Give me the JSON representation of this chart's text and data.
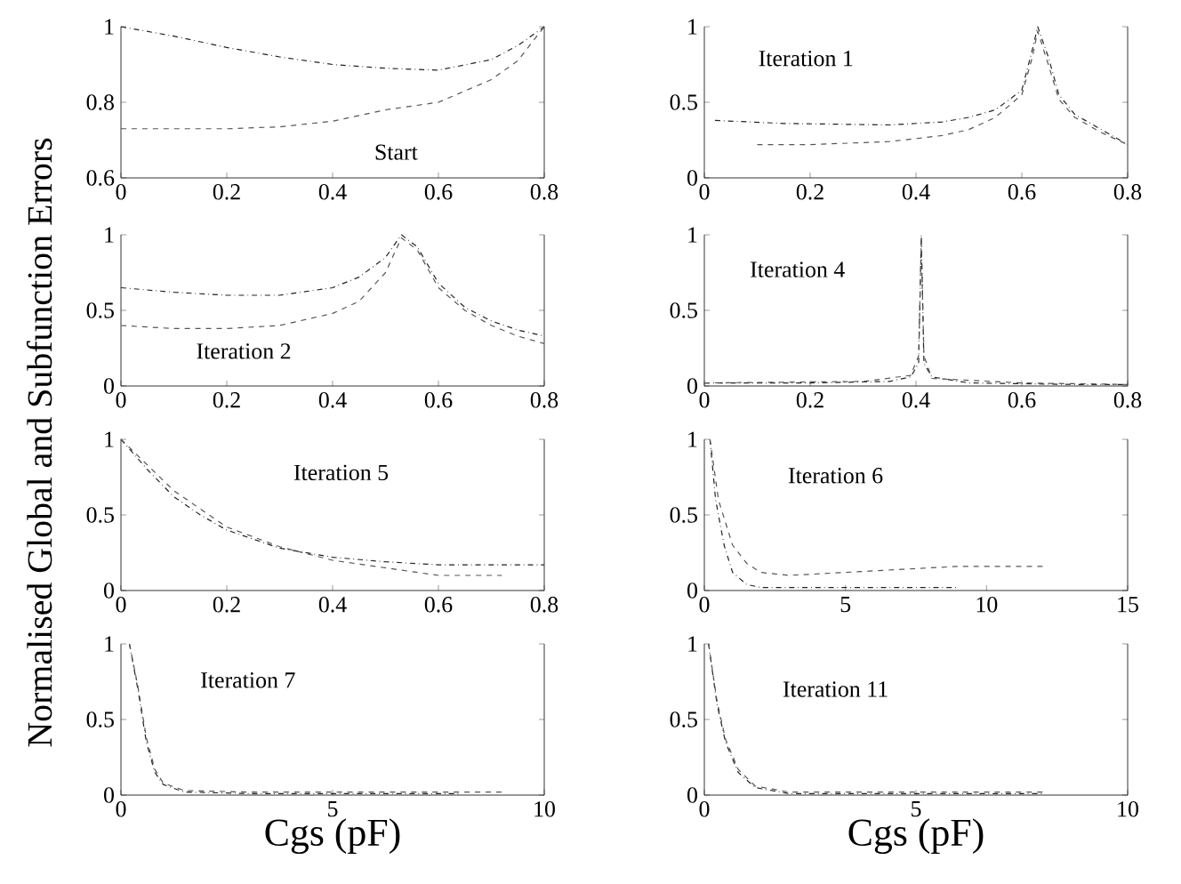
{
  "chart_data": [
    {
      "type": "line",
      "ylabel": "Normalised Global and Subfunction Errors",
      "xlim": [
        0,
        0.8
      ],
      "ylim": [
        0.6,
        1
      ],
      "xticks": [
        0,
        0.2,
        0.4,
        0.6,
        0.8
      ],
      "yticks": [
        0.6,
        0.8,
        1
      ],
      "annotations": [
        "Start"
      ],
      "series": [
        {
          "color": "#222222",
          "line_style": "dashdot",
          "x": [
            0,
            0.1,
            0.2,
            0.3,
            0.4,
            0.5,
            0.6,
            0.7,
            0.75,
            0.8
          ],
          "values": [
            1.0,
            0.975,
            0.945,
            0.92,
            0.9,
            0.89,
            0.885,
            0.913,
            0.95,
            1.0
          ]
        },
        {
          "color": "#555555",
          "line_style": "dashed",
          "x": [
            0,
            0.1,
            0.2,
            0.3,
            0.4,
            0.5,
            0.6,
            0.7,
            0.75,
            0.8
          ],
          "values": [
            0.73,
            0.73,
            0.73,
            0.735,
            0.75,
            0.78,
            0.8,
            0.86,
            0.91,
            1.0
          ]
        }
      ]
    },
    {
      "type": "line",
      "xlim": [
        0,
        0.8
      ],
      "ylim": [
        0,
        1
      ],
      "xticks": [
        0,
        0.2,
        0.4,
        0.6,
        0.8
      ],
      "yticks": [
        0,
        0.5,
        1
      ],
      "annotations": [
        "Iteration 1"
      ],
      "series": [
        {
          "color": "#222222",
          "line_style": "dashdot",
          "x": [
            0.02,
            0.15,
            0.35,
            0.45,
            0.5,
            0.55,
            0.6,
            0.62,
            0.63,
            0.65,
            0.67,
            0.7,
            0.75,
            0.8
          ],
          "values": [
            0.38,
            0.36,
            0.35,
            0.37,
            0.4,
            0.45,
            0.58,
            0.85,
            1.0,
            0.8,
            0.55,
            0.42,
            0.32,
            0.22
          ]
        },
        {
          "color": "#555555",
          "line_style": "dashed",
          "x": [
            0.1,
            0.2,
            0.35,
            0.45,
            0.5,
            0.55,
            0.6,
            0.62,
            0.63,
            0.65,
            0.67,
            0.7,
            0.75,
            0.8
          ],
          "values": [
            0.22,
            0.22,
            0.24,
            0.28,
            0.32,
            0.4,
            0.55,
            0.8,
            0.97,
            0.75,
            0.52,
            0.4,
            0.3,
            0.22
          ]
        }
      ]
    },
    {
      "type": "line",
      "xlim": [
        0,
        0.8
      ],
      "ylim": [
        0,
        1
      ],
      "xticks": [
        0,
        0.2,
        0.4,
        0.6,
        0.8
      ],
      "yticks": [
        0,
        0.5,
        1
      ],
      "annotations": [
        "Iteration 2"
      ],
      "series": [
        {
          "color": "#222222",
          "line_style": "dashdot",
          "x": [
            0,
            0.1,
            0.2,
            0.3,
            0.4,
            0.45,
            0.5,
            0.53,
            0.56,
            0.6,
            0.65,
            0.7,
            0.75,
            0.8
          ],
          "values": [
            0.65,
            0.62,
            0.6,
            0.6,
            0.65,
            0.72,
            0.85,
            1.0,
            0.92,
            0.68,
            0.52,
            0.43,
            0.37,
            0.33
          ]
        },
        {
          "color": "#555555",
          "line_style": "dashed",
          "x": [
            0,
            0.1,
            0.2,
            0.3,
            0.4,
            0.45,
            0.5,
            0.53,
            0.56,
            0.6,
            0.65,
            0.7,
            0.75,
            0.8
          ],
          "values": [
            0.4,
            0.38,
            0.38,
            0.4,
            0.48,
            0.56,
            0.75,
            0.98,
            0.9,
            0.65,
            0.5,
            0.4,
            0.33,
            0.28
          ]
        }
      ]
    },
    {
      "type": "line",
      "xlim": [
        0,
        0.8
      ],
      "ylim": [
        0,
        1
      ],
      "xticks": [
        0,
        0.2,
        0.4,
        0.6,
        0.8
      ],
      "yticks": [
        0,
        0.5,
        1
      ],
      "annotations": [
        "Iteration 4"
      ],
      "series": [
        {
          "color": "#222222",
          "line_style": "dashdot",
          "x": [
            0,
            0.2,
            0.35,
            0.39,
            0.405,
            0.41,
            0.415,
            0.43,
            0.5,
            0.7,
            0.8
          ],
          "values": [
            0.02,
            0.02,
            0.03,
            0.06,
            0.15,
            1.0,
            0.15,
            0.06,
            0.02,
            0.01,
            0.01
          ]
        },
        {
          "color": "#555555",
          "line_style": "dashed",
          "x": [
            0,
            0.3,
            0.39,
            0.405,
            0.41,
            0.415,
            0.43,
            0.6,
            0.8
          ],
          "values": [
            0.02,
            0.03,
            0.07,
            0.2,
            0.95,
            0.2,
            0.05,
            0.02,
            0.01
          ]
        }
      ]
    },
    {
      "type": "line",
      "xlim": [
        0,
        0.8
      ],
      "ylim": [
        0,
        1
      ],
      "xticks": [
        0,
        0.2,
        0.4,
        0.6,
        0.8
      ],
      "yticks": [
        0,
        0.5,
        1
      ],
      "annotations": [
        "Iteration 5"
      ],
      "series": [
        {
          "color": "#222222",
          "line_style": "dashdot",
          "x": [
            0,
            0.05,
            0.1,
            0.15,
            0.2,
            0.3,
            0.4,
            0.5,
            0.6,
            0.7,
            0.8
          ],
          "values": [
            1.0,
            0.8,
            0.62,
            0.5,
            0.4,
            0.28,
            0.22,
            0.19,
            0.17,
            0.17,
            0.17
          ]
        },
        {
          "color": "#555555",
          "line_style": "dashed",
          "x": [
            0,
            0.05,
            0.1,
            0.2,
            0.3,
            0.4,
            0.5,
            0.6,
            0.72
          ],
          "values": [
            1.0,
            0.83,
            0.66,
            0.42,
            0.29,
            0.2,
            0.15,
            0.1,
            0.1
          ]
        }
      ]
    },
    {
      "type": "line",
      "xlim": [
        0,
        15
      ],
      "ylim": [
        0,
        1
      ],
      "xticks": [
        0,
        5,
        10,
        15
      ],
      "yticks": [
        0,
        0.5,
        1
      ],
      "annotations": [
        "Iteration 6"
      ],
      "series": [
        {
          "color": "#222222",
          "line_style": "dashdot",
          "x": [
            0.2,
            0.4,
            0.7,
            1,
            1.5,
            2,
            4,
            6,
            9
          ],
          "values": [
            1.0,
            0.6,
            0.3,
            0.12,
            0.04,
            0.02,
            0.02,
            0.02,
            0.02
          ]
        },
        {
          "color": "#555555",
          "line_style": "dashed",
          "x": [
            0.2,
            0.5,
            1,
            1.5,
            2,
            3,
            5,
            7,
            9,
            12
          ],
          "values": [
            1.0,
            0.6,
            0.3,
            0.18,
            0.12,
            0.1,
            0.12,
            0.14,
            0.16,
            0.16
          ]
        }
      ]
    },
    {
      "type": "line",
      "xlabel": "Cgs (pF)",
      "xlim": [
        0,
        10
      ],
      "ylim": [
        0,
        1
      ],
      "xticks": [
        0,
        5,
        10
      ],
      "yticks": [
        0,
        0.5,
        1
      ],
      "annotations": [
        "Iteration 7"
      ],
      "series": [
        {
          "color": "#222222",
          "line_style": "dashdot",
          "x": [
            0.2,
            0.4,
            0.6,
            0.8,
            1,
            1.5,
            3,
            5,
            8
          ],
          "values": [
            1.0,
            0.7,
            0.35,
            0.15,
            0.07,
            0.02,
            0.01,
            0.01,
            0.01
          ]
        },
        {
          "color": "#555555",
          "line_style": "dashed",
          "x": [
            0.2,
            0.4,
            0.6,
            0.8,
            1,
            1.5,
            3,
            6,
            9
          ],
          "values": [
            1.0,
            0.72,
            0.38,
            0.17,
            0.08,
            0.03,
            0.02,
            0.02,
            0.02
          ]
        }
      ]
    },
    {
      "type": "line",
      "xlabel": "Cgs (pF)",
      "xlim": [
        0,
        10
      ],
      "ylim": [
        0,
        1
      ],
      "xticks": [
        0,
        5,
        10
      ],
      "yticks": [
        0,
        0.5,
        1
      ],
      "annotations": [
        "Iteration 11"
      ],
      "series": [
        {
          "color": "#222222",
          "line_style": "dashdot",
          "x": [
            0.1,
            0.3,
            0.5,
            0.8,
            1.2,
            2,
            5,
            8
          ],
          "values": [
            1.0,
            0.6,
            0.35,
            0.15,
            0.05,
            0.01,
            0.01,
            0.01
          ]
        },
        {
          "color": "#555555",
          "line_style": "dashed",
          "x": [
            0.1,
            0.3,
            0.5,
            0.8,
            1.2,
            2,
            5,
            8
          ],
          "values": [
            1.0,
            0.62,
            0.37,
            0.17,
            0.06,
            0.02,
            0.02,
            0.02
          ]
        }
      ]
    }
  ]
}
